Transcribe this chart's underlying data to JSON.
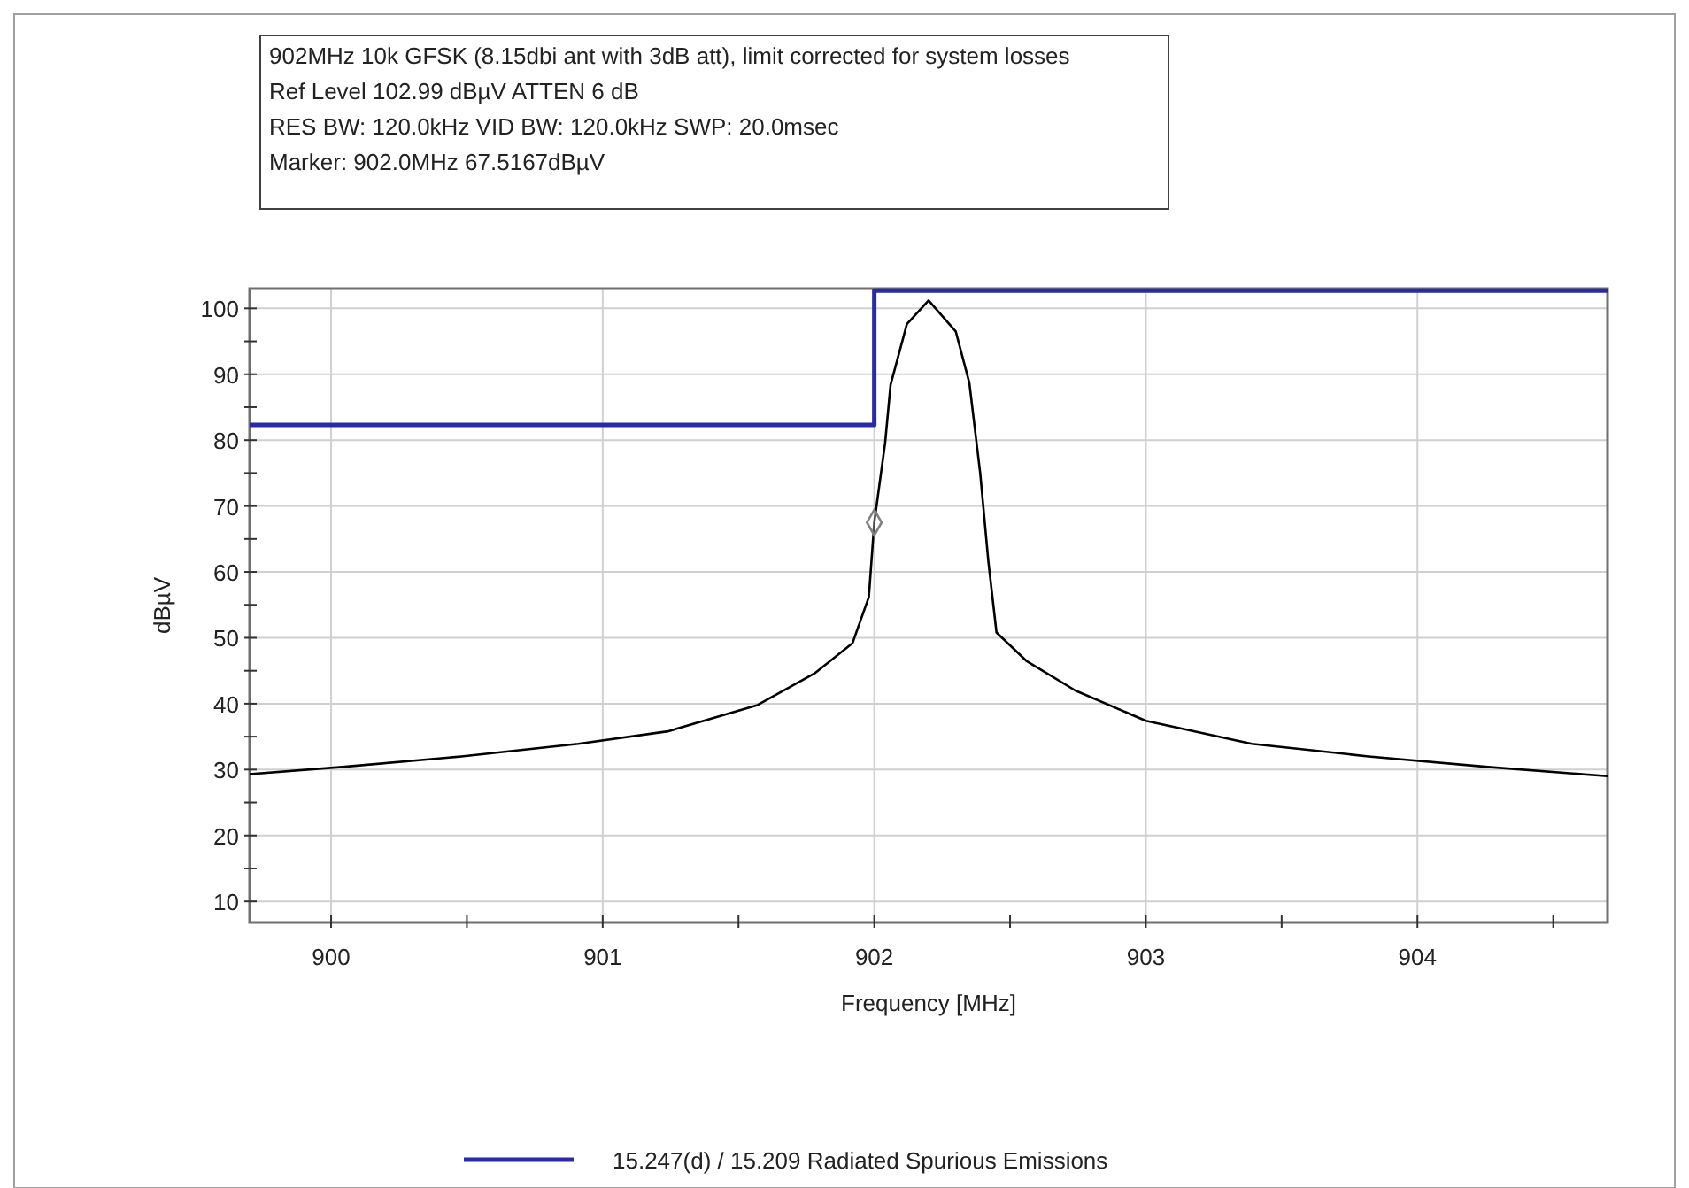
{
  "chart_data": {
    "type": "line",
    "xlabel": "Frequency [MHz]",
    "ylabel": "dBµV",
    "annotations": [
      "902MHz 10k GFSK (8.15dbi ant with 3dB att), limit corrected for system losses",
      "Ref Level 102.99 dBµV    ATTEN 6 dB",
      "RES BW: 120.0kHz  VID BW: 120.0kHz  SWP: 20.0msec",
      "Marker: 902.0MHz  67.5167dBµV"
    ],
    "xlim": [
      899.7,
      904.7
    ],
    "ylim": [
      6.8,
      103
    ],
    "xticks": [
      900,
      {
        "value": 900.5,
        "label": null
      },
      901,
      {
        "value": 901.5,
        "label": null
      },
      902,
      {
        "value": 902.5,
        "label": null
      },
      903,
      {
        "value": 903.5,
        "label": null
      },
      904,
      {
        "value": 904.5,
        "label": null
      }
    ],
    "yticks": [
      10,
      {
        "value": 15,
        "label": null
      },
      20,
      {
        "value": 25,
        "label": null
      },
      30,
      {
        "value": 35,
        "label": null
      },
      40,
      {
        "value": 45,
        "label": null
      },
      50,
      {
        "value": 55,
        "label": null
      },
      60,
      {
        "value": 65,
        "label": null
      },
      70,
      {
        "value": 75,
        "label": null
      },
      80,
      {
        "value": 85,
        "label": null
      },
      90,
      {
        "value": 95,
        "label": null
      },
      100
    ],
    "grid": true,
    "legend": "bottom",
    "line_style": "solid",
    "series": [
      {
        "color": "#000000",
        "x": [
          899.7,
          900.04,
          900.48,
          900.91,
          901.24,
          901.57,
          901.78,
          901.92,
          901.98,
          902.0,
          902.04,
          902.06,
          902.12,
          902.2,
          902.3,
          902.35,
          902.39,
          902.42,
          902.45,
          902.56,
          902.74,
          903.0,
          903.39,
          903.82,
          904.26,
          904.7
        ],
        "values": [
          29.3,
          30.4,
          32,
          33.9,
          35.8,
          39.8,
          44.6,
          49.2,
          56.2,
          67.5,
          79.6,
          88.4,
          97.6,
          101.2,
          96.5,
          88.7,
          75,
          61.6,
          50.8,
          46.5,
          42,
          37.4,
          33.9,
          32,
          30.4,
          29
        ]
      },
      {
        "type": "step",
        "name": "15.247(d) / 15.209 Radiated Spurious Emissions",
        "color": "#2a2aa6",
        "x": [
          899.7,
          902.0,
          904.7
        ],
        "values": [
          82.3,
          102.7,
          102.7
        ]
      },
      {
        "type": "scatter",
        "color": "#808080",
        "marker": "diamond",
        "x": [
          902.0
        ],
        "values": [
          67.5
        ]
      }
    ]
  }
}
